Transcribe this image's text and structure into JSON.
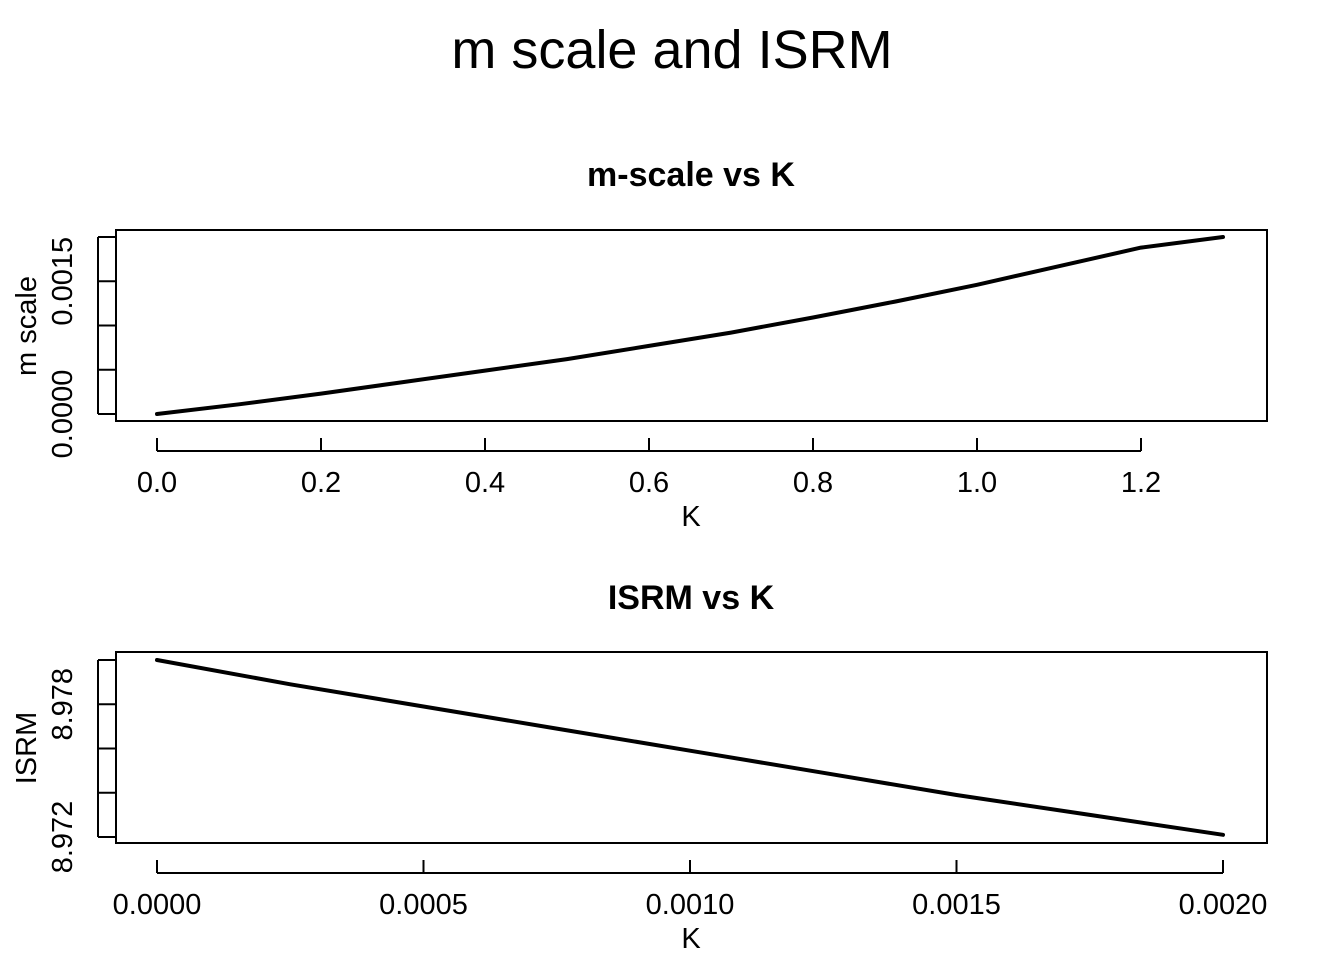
{
  "figure": {
    "title": "m scale and ISRM"
  },
  "chart_data": [
    {
      "type": "line",
      "title": "m-scale vs K",
      "xlabel": "K",
      "ylabel": "m scale",
      "xlim": [
        0.0,
        1.3
      ],
      "ylim": [
        0.0,
        0.002
      ],
      "x_ticks": [
        0.0,
        0.2,
        0.4,
        0.6,
        0.8,
        1.0,
        1.2
      ],
      "x_tick_labels": [
        "0.0",
        "0.2",
        "0.4",
        "0.6",
        "0.8",
        "1.0",
        "1.2"
      ],
      "y_ticks": [
        0.0,
        0.0005,
        0.001,
        0.0015,
        0.002
      ],
      "y_tick_labels": [
        "0.0000",
        "",
        "",
        "0.0015",
        ""
      ],
      "grid": false,
      "series": [
        {
          "x": [
            0.0,
            0.1,
            0.2,
            0.3,
            0.4,
            0.5,
            0.6,
            0.7,
            0.8,
            0.9,
            1.0,
            1.1,
            1.2,
            1.3
          ],
          "y": [
            0.0,
            0.00011,
            0.00023,
            0.00036,
            0.00049,
            0.00062,
            0.00077,
            0.00092,
            0.00109,
            0.00127,
            0.00146,
            0.00167,
            0.00188,
            0.002
          ],
          "color": "#000000"
        }
      ]
    },
    {
      "type": "line",
      "title": "ISRM vs K",
      "xlabel": "K",
      "ylabel": "ISRM",
      "xlim": [
        0.0,
        0.002
      ],
      "ylim": [
        8.972,
        8.98
      ],
      "x_ticks": [
        0.0,
        0.0005,
        0.001,
        0.0015,
        0.002
      ],
      "x_tick_labels": [
        "0.0000",
        "0.0005",
        "0.0010",
        "0.0015",
        "0.0020"
      ],
      "y_ticks": [
        8.972,
        8.974,
        8.976,
        8.978,
        8.98
      ],
      "y_tick_labels": [
        "8.972",
        "",
        "",
        "8.978",
        ""
      ],
      "grid": false,
      "series": [
        {
          "x": [
            0.0,
            0.00025,
            0.0005,
            0.00075,
            0.001,
            0.00125,
            0.0015,
            0.00175,
            0.002
          ],
          "y": [
            8.98,
            8.9789,
            8.9779,
            8.9769,
            8.9759,
            8.9749,
            8.9739,
            8.973,
            8.9721
          ],
          "color": "#000000"
        }
      ]
    }
  ]
}
